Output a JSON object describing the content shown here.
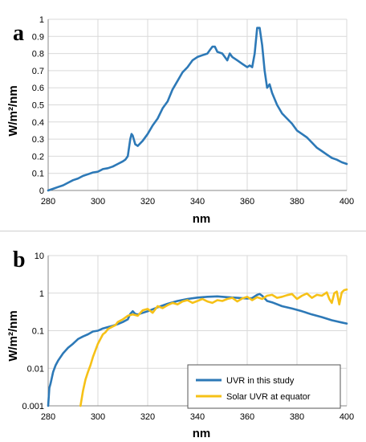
{
  "colors": {
    "blue": "#2d79b7",
    "yellow": "#f6c117",
    "grid": "#d9d9d9",
    "axis": "#888888"
  },
  "chart_data": [
    {
      "type": "line",
      "panel_label": "a",
      "xlabel": "nm",
      "ylabel": "W/m²/nm",
      "xlim": [
        280,
        400
      ],
      "ylim": [
        0,
        1
      ],
      "yscale": "linear",
      "grid": true,
      "legend": "none",
      "x_ticks": [
        280,
        300,
        320,
        340,
        360,
        380,
        400
      ],
      "y_ticks": [
        0,
        0.1,
        0.2,
        0.3,
        0.4,
        0.5,
        0.6,
        0.7,
        0.8,
        0.9,
        1
      ],
      "x_tick_labels": [
        "280",
        "300",
        "320",
        "340",
        "360",
        "380",
        "400"
      ],
      "y_tick_labels": [
        "0",
        "0.1",
        "0.2",
        "0.3",
        "0.4",
        "0.5",
        "0.6",
        "0.7",
        "0.8",
        "0.9",
        "1"
      ],
      "series": [
        {
          "key": "uvr",
          "color": "#2d79b7",
          "x": [
            280,
            282,
            284,
            286,
            288,
            290,
            292,
            294,
            296,
            298,
            300,
            302,
            304,
            306,
            308,
            310,
            311,
            312,
            313,
            313.5,
            314,
            315,
            316,
            318,
            320,
            322,
            324,
            326,
            328,
            330,
            332,
            334,
            336,
            338,
            340,
            342,
            344,
            345,
            346,
            347,
            348,
            350,
            352,
            353,
            354,
            356,
            358,
            360,
            361,
            362,
            363,
            364,
            365,
            366,
            367,
            368,
            369,
            370,
            372,
            374,
            376,
            378,
            380,
            382,
            384,
            386,
            388,
            390,
            392,
            394,
            396,
            398,
            400
          ],
          "y": [
            0.0,
            0.01,
            0.02,
            0.03,
            0.045,
            0.06,
            0.07,
            0.085,
            0.095,
            0.105,
            0.11,
            0.125,
            0.13,
            0.14,
            0.155,
            0.17,
            0.18,
            0.2,
            0.3,
            0.33,
            0.32,
            0.27,
            0.26,
            0.29,
            0.33,
            0.38,
            0.42,
            0.48,
            0.52,
            0.59,
            0.64,
            0.69,
            0.72,
            0.76,
            0.78,
            0.79,
            0.8,
            0.82,
            0.84,
            0.84,
            0.81,
            0.8,
            0.76,
            0.8,
            0.78,
            0.76,
            0.74,
            0.72,
            0.73,
            0.72,
            0.8,
            0.95,
            0.95,
            0.85,
            0.7,
            0.6,
            0.62,
            0.57,
            0.5,
            0.45,
            0.42,
            0.39,
            0.35,
            0.33,
            0.31,
            0.28,
            0.25,
            0.23,
            0.21,
            0.19,
            0.18,
            0.165,
            0.155
          ]
        }
      ]
    },
    {
      "type": "line",
      "panel_label": "b",
      "xlabel": "nm",
      "ylabel": "W/m²/nm",
      "xlim": [
        280,
        400
      ],
      "ylim": [
        0.001,
        10
      ],
      "yscale": "log",
      "grid": true,
      "legend": "bottom-right",
      "x_ticks": [
        280,
        300,
        320,
        340,
        360,
        380,
        400
      ],
      "y_ticks": [
        0.001,
        0.01,
        0.1,
        1,
        10
      ],
      "x_tick_labels": [
        "280",
        "300",
        "320",
        "340",
        "360",
        "380",
        "400"
      ],
      "y_tick_labels": [
        "0.001",
        "0.01",
        "0.1",
        "1",
        "10"
      ],
      "series": [
        {
          "key": "uvr",
          "name": "UVR in this study",
          "color": "#2d79b7",
          "x": [
            280,
            280.5,
            281,
            282,
            283,
            284,
            286,
            288,
            290,
            292,
            294,
            296,
            298,
            300,
            302,
            304,
            306,
            308,
            310,
            312,
            313,
            314,
            315,
            316,
            320,
            324,
            328,
            332,
            336,
            340,
            344,
            348,
            352,
            356,
            360,
            362,
            364,
            365,
            366,
            368,
            370,
            374,
            378,
            382,
            386,
            390,
            394,
            398,
            400
          ],
          "y": [
            0.001,
            0.003,
            0.004,
            0.008,
            0.012,
            0.016,
            0.025,
            0.035,
            0.045,
            0.06,
            0.07,
            0.08,
            0.095,
            0.1,
            0.115,
            0.125,
            0.135,
            0.15,
            0.17,
            0.2,
            0.28,
            0.33,
            0.28,
            0.27,
            0.33,
            0.42,
            0.52,
            0.62,
            0.7,
            0.76,
            0.8,
            0.82,
            0.78,
            0.75,
            0.72,
            0.74,
            0.9,
            0.95,
            0.85,
            0.62,
            0.57,
            0.45,
            0.39,
            0.33,
            0.27,
            0.23,
            0.19,
            0.165,
            0.155
          ]
        },
        {
          "key": "solar",
          "name": "Solar UVR at equator",
          "color": "#f6c117",
          "x": [
            293,
            294,
            295,
            296,
            297,
            298,
            299,
            300,
            301,
            302,
            303,
            304,
            305,
            306,
            307,
            308,
            310,
            312,
            314,
            316,
            318,
            320,
            322,
            324,
            326,
            328,
            330,
            332,
            334,
            336,
            338,
            340,
            342,
            344,
            346,
            348,
            350,
            352,
            354,
            356,
            358,
            360,
            362,
            364,
            366,
            368,
            370,
            372,
            374,
            376,
            378,
            380,
            382,
            384,
            386,
            388,
            390,
            392,
            393,
            394,
            395,
            396,
            397,
            398,
            399,
            400
          ],
          "y": [
            0.001,
            0.0025,
            0.005,
            0.008,
            0.012,
            0.02,
            0.03,
            0.045,
            0.06,
            0.08,
            0.09,
            0.11,
            0.12,
            0.13,
            0.14,
            0.17,
            0.2,
            0.25,
            0.27,
            0.25,
            0.35,
            0.38,
            0.3,
            0.45,
            0.4,
            0.48,
            0.55,
            0.5,
            0.6,
            0.65,
            0.55,
            0.62,
            0.7,
            0.6,
            0.55,
            0.65,
            0.62,
            0.7,
            0.75,
            0.6,
            0.72,
            0.8,
            0.65,
            0.78,
            0.7,
            0.85,
            0.9,
            0.75,
            0.8,
            0.88,
            0.95,
            0.7,
            0.85,
            0.98,
            0.75,
            0.9,
            0.85,
            1.05,
            0.7,
            0.55,
            1.0,
            1.1,
            0.5,
            1.05,
            1.2,
            1.25
          ]
        }
      ]
    }
  ]
}
